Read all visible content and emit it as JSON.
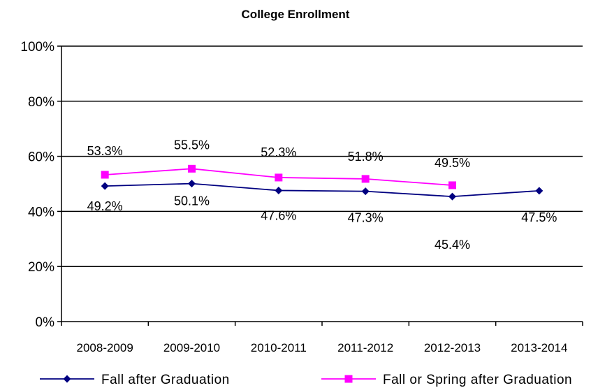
{
  "chart_data": {
    "type": "line",
    "title": "College Enrollment",
    "xlabel": "",
    "ylabel": "",
    "categories": [
      "2008-2009",
      "2009-2010",
      "2010-2011",
      "2011-2012",
      "2012-2013",
      "2013-2014"
    ],
    "ylim": [
      0,
      100
    ],
    "y_ticks": [
      "0%",
      "20%",
      "40%",
      "60%",
      "80%",
      "100%"
    ],
    "grid": true,
    "legend_position": "bottom",
    "series": [
      {
        "name": "Fall after Graduation",
        "values": [
          49.2,
          50.1,
          47.6,
          47.3,
          45.4,
          47.5
        ],
        "labels": [
          "49.2%",
          "50.1%",
          "47.6%",
          "47.3%",
          "45.4%",
          "47.5%"
        ],
        "color": "#000080",
        "marker": "diamond"
      },
      {
        "name": "Fall or Spring after Graduation",
        "values": [
          53.3,
          55.5,
          52.3,
          51.8,
          49.5,
          null
        ],
        "labels": [
          "53.3%",
          "55.5%",
          "52.3%",
          "51.8%",
          "49.5%",
          null
        ],
        "color": "#FF00FF",
        "marker": "square"
      }
    ]
  }
}
